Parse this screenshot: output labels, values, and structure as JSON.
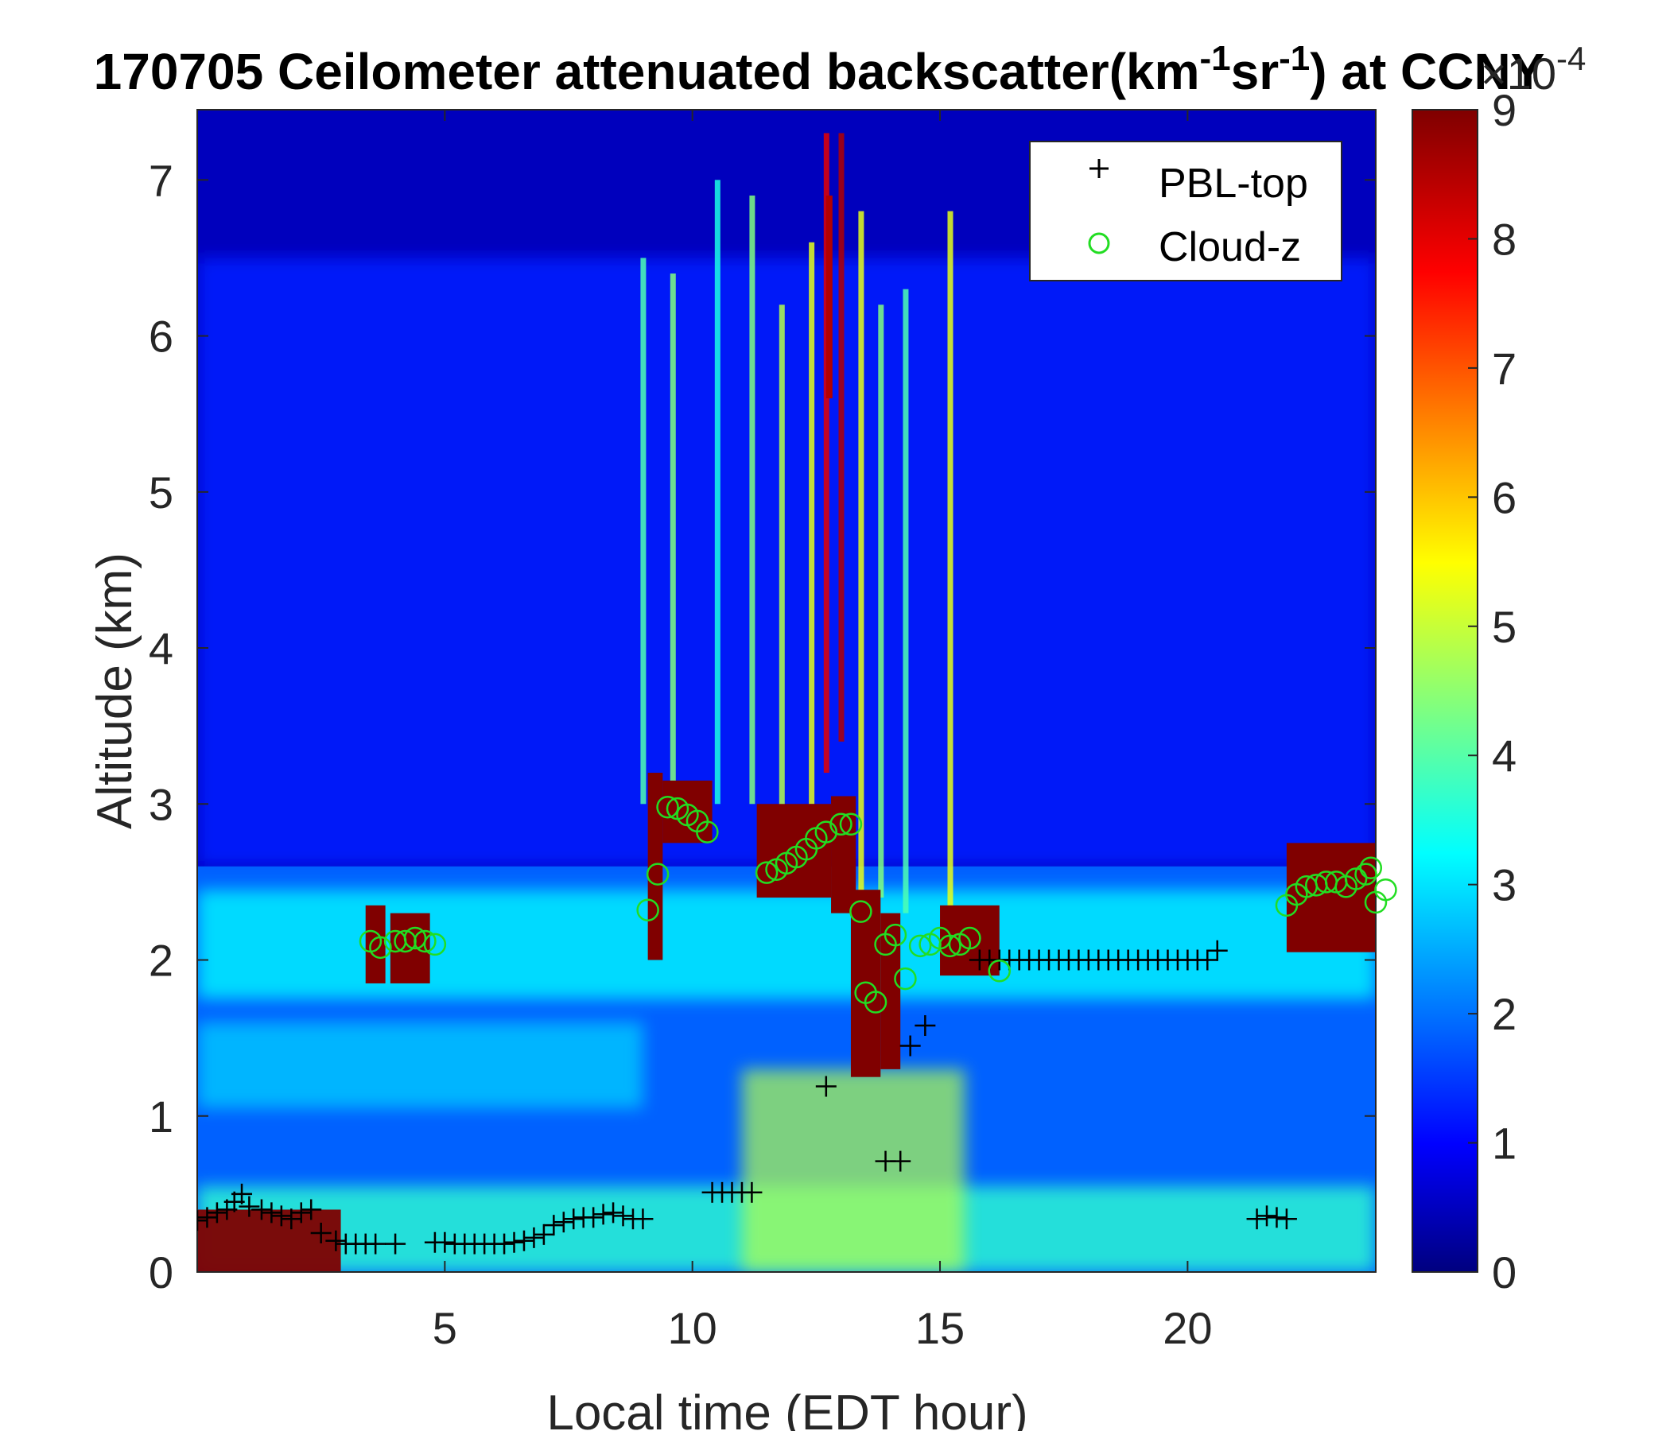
{
  "chart_data": {
    "type": "heatmap",
    "title_main": "170705 Ceilometer attenuated backscatter(km",
    "title_exp1": "-1",
    "title_mid": "sr",
    "title_exp2": "-1",
    "title_end": ") at CCNY",
    "xlabel": "Local time (EDT hour)",
    "ylabel": "Altitude (km)",
    "xlim": [
      0,
      23.8
    ],
    "ylim": [
      0,
      7.45
    ],
    "xticks": [
      "5",
      "10",
      "15",
      "20"
    ],
    "yticks": [
      "0",
      "1",
      "2",
      "3",
      "4",
      "5",
      "6",
      "7"
    ],
    "colorbar": {
      "ticks": [
        "0",
        "1",
        "2",
        "3",
        "4",
        "5",
        "6",
        "7",
        "8",
        "9"
      ],
      "range": [
        0,
        9
      ],
      "multiplier_base": "×10",
      "multiplier_exp": "-4",
      "colormap": "jet"
    },
    "legend": {
      "location": "top-right",
      "entries": [
        "PBL-top",
        "Cloud-z"
      ]
    },
    "colors": {
      "pbl": "#000000",
      "cloud": "#22dd22"
    },
    "series": [
      {
        "name": "PBL-top",
        "marker": "+",
        "points": [
          [
            0.0,
            0.33
          ],
          [
            0.2,
            0.35
          ],
          [
            0.4,
            0.38
          ],
          [
            0.6,
            0.4
          ],
          [
            0.75,
            0.45
          ],
          [
            0.9,
            0.5
          ],
          [
            1.05,
            0.42
          ],
          [
            1.3,
            0.4
          ],
          [
            1.5,
            0.38
          ],
          [
            1.7,
            0.36
          ],
          [
            1.9,
            0.34
          ],
          [
            2.1,
            0.38
          ],
          [
            2.3,
            0.4
          ],
          [
            2.5,
            0.25
          ],
          [
            2.8,
            0.2
          ],
          [
            3.0,
            0.18
          ],
          [
            3.2,
            0.18
          ],
          [
            3.4,
            0.18
          ],
          [
            3.6,
            0.18
          ],
          [
            4.0,
            0.18
          ],
          [
            4.8,
            0.19
          ],
          [
            5.0,
            0.19
          ],
          [
            5.2,
            0.18
          ],
          [
            5.4,
            0.18
          ],
          [
            5.6,
            0.18
          ],
          [
            5.8,
            0.18
          ],
          [
            6.0,
            0.18
          ],
          [
            6.2,
            0.18
          ],
          [
            6.4,
            0.19
          ],
          [
            6.6,
            0.2
          ],
          [
            6.8,
            0.22
          ],
          [
            7.0,
            0.24
          ],
          [
            7.2,
            0.3
          ],
          [
            7.4,
            0.32
          ],
          [
            7.6,
            0.34
          ],
          [
            7.8,
            0.35
          ],
          [
            8.0,
            0.35
          ],
          [
            8.2,
            0.37
          ],
          [
            8.4,
            0.38
          ],
          [
            8.6,
            0.36
          ],
          [
            8.8,
            0.34
          ],
          [
            9.0,
            0.34
          ],
          [
            10.4,
            0.51
          ],
          [
            10.6,
            0.51
          ],
          [
            10.8,
            0.51
          ],
          [
            11.0,
            0.51
          ],
          [
            11.2,
            0.51
          ],
          [
            12.7,
            1.19
          ],
          [
            13.9,
            0.71
          ],
          [
            14.2,
            0.71
          ],
          [
            14.4,
            1.45
          ],
          [
            14.7,
            1.58
          ],
          [
            15.8,
            2.0
          ],
          [
            16.0,
            2.0
          ],
          [
            16.2,
            2.0
          ],
          [
            16.4,
            2.0
          ],
          [
            16.6,
            2.0
          ],
          [
            16.8,
            2.0
          ],
          [
            17.0,
            2.0
          ],
          [
            17.2,
            2.0
          ],
          [
            17.4,
            2.0
          ],
          [
            17.6,
            2.0
          ],
          [
            17.8,
            2.0
          ],
          [
            18.0,
            2.0
          ],
          [
            18.2,
            2.0
          ],
          [
            18.4,
            2.0
          ],
          [
            18.6,
            2.0
          ],
          [
            18.8,
            2.0
          ],
          [
            19.0,
            2.0
          ],
          [
            19.2,
            2.0
          ],
          [
            19.4,
            2.0
          ],
          [
            19.6,
            2.0
          ],
          [
            19.8,
            2.0
          ],
          [
            20.0,
            2.0
          ],
          [
            20.2,
            2.0
          ],
          [
            20.4,
            2.0
          ],
          [
            20.6,
            2.06
          ],
          [
            21.4,
            0.34
          ],
          [
            21.6,
            0.36
          ],
          [
            21.8,
            0.35
          ],
          [
            22.0,
            0.34
          ]
        ]
      },
      {
        "name": "Cloud-z",
        "marker": "o",
        "points": [
          [
            3.5,
            2.12
          ],
          [
            3.7,
            2.08
          ],
          [
            4.0,
            2.12
          ],
          [
            4.2,
            2.12
          ],
          [
            4.4,
            2.14
          ],
          [
            4.6,
            2.12
          ],
          [
            4.8,
            2.1
          ],
          [
            9.1,
            2.32
          ],
          [
            9.3,
            2.55
          ],
          [
            9.5,
            2.98
          ],
          [
            9.7,
            2.97
          ],
          [
            9.9,
            2.93
          ],
          [
            10.1,
            2.89
          ],
          [
            10.3,
            2.82
          ],
          [
            11.5,
            2.56
          ],
          [
            11.7,
            2.58
          ],
          [
            11.9,
            2.62
          ],
          [
            12.1,
            2.66
          ],
          [
            12.3,
            2.71
          ],
          [
            12.5,
            2.78
          ],
          [
            12.7,
            2.82
          ],
          [
            13.0,
            2.87
          ],
          [
            13.2,
            2.87
          ],
          [
            13.4,
            2.31
          ],
          [
            13.5,
            1.79
          ],
          [
            13.7,
            1.73
          ],
          [
            13.9,
            2.1
          ],
          [
            14.1,
            2.16
          ],
          [
            14.3,
            1.88
          ],
          [
            14.6,
            2.09
          ],
          [
            14.8,
            2.1
          ],
          [
            15.0,
            2.14
          ],
          [
            15.2,
            2.09
          ],
          [
            15.4,
            2.1
          ],
          [
            15.6,
            2.14
          ],
          [
            16.2,
            1.93
          ],
          [
            22.0,
            2.35
          ],
          [
            22.2,
            2.42
          ],
          [
            22.4,
            2.47
          ],
          [
            22.6,
            2.48
          ],
          [
            22.8,
            2.5
          ],
          [
            23.0,
            2.5
          ],
          [
            23.2,
            2.47
          ],
          [
            23.4,
            2.52
          ],
          [
            23.6,
            2.55
          ],
          [
            23.7,
            2.59
          ],
          [
            23.8,
            2.37
          ],
          [
            24.0,
            2.45
          ]
        ]
      }
    ]
  }
}
